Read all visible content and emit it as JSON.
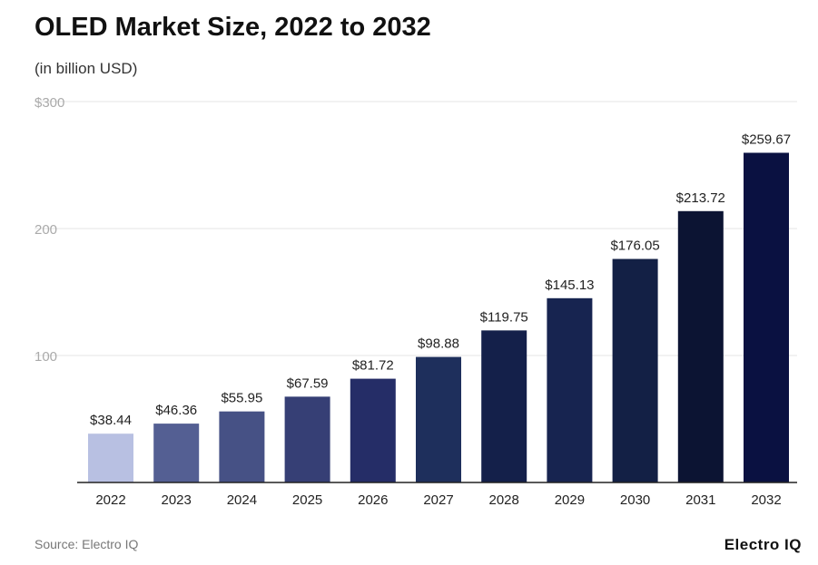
{
  "title": "OLED Market Size, 2022 to 2032",
  "subtitle": "(in billion USD)",
  "source": "Source: Electro IQ",
  "brand": "Electro IQ",
  "chart_data": {
    "type": "bar",
    "categories": [
      "2022",
      "2023",
      "2024",
      "2025",
      "2026",
      "2027",
      "2028",
      "2029",
      "2030",
      "2031",
      "2032"
    ],
    "values": [
      38.44,
      46.36,
      55.95,
      67.59,
      81.72,
      98.88,
      119.75,
      145.13,
      176.05,
      213.72,
      259.67
    ],
    "data_labels": [
      "$38.44",
      "$46.36",
      "$55.95",
      "$67.59",
      "$81.72",
      "$98.88",
      "$119.75",
      "$145.13",
      "$176.05",
      "$213.72",
      "$259.67"
    ],
    "colors": [
      "#b8c0e2",
      "#545f93",
      "#465185",
      "#363f75",
      "#252d67",
      "#1e2f5c",
      "#14204a",
      "#172450",
      "#132045",
      "#0c1433",
      "#0a1141"
    ],
    "yticks": [
      {
        "value": 300,
        "label": "$300"
      },
      {
        "value": 200,
        "label": "200"
      },
      {
        "value": 100,
        "label": "100"
      }
    ],
    "ylim": [
      0,
      300
    ],
    "grid": true,
    "xlabel": "",
    "ylabel": ""
  }
}
